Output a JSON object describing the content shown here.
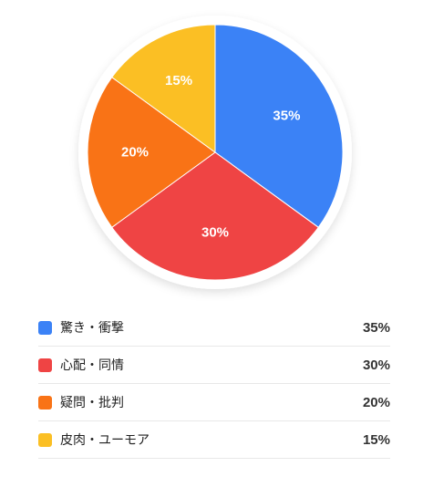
{
  "chart_data": {
    "type": "pie",
    "title": "",
    "legend_position": "bottom",
    "slices": [
      {
        "label": "驚き・衝撃",
        "value": 35,
        "display": "35%",
        "color": "#3B82F6"
      },
      {
        "label": "心配・同情",
        "value": 30,
        "display": "30%",
        "color": "#EF4444"
      },
      {
        "label": "疑問・批判",
        "value": 20,
        "display": "20%",
        "color": "#F97316"
      },
      {
        "label": "皮肉・ユーモア",
        "value": 15,
        "display": "15%",
        "color": "#FBBF24"
      }
    ]
  }
}
